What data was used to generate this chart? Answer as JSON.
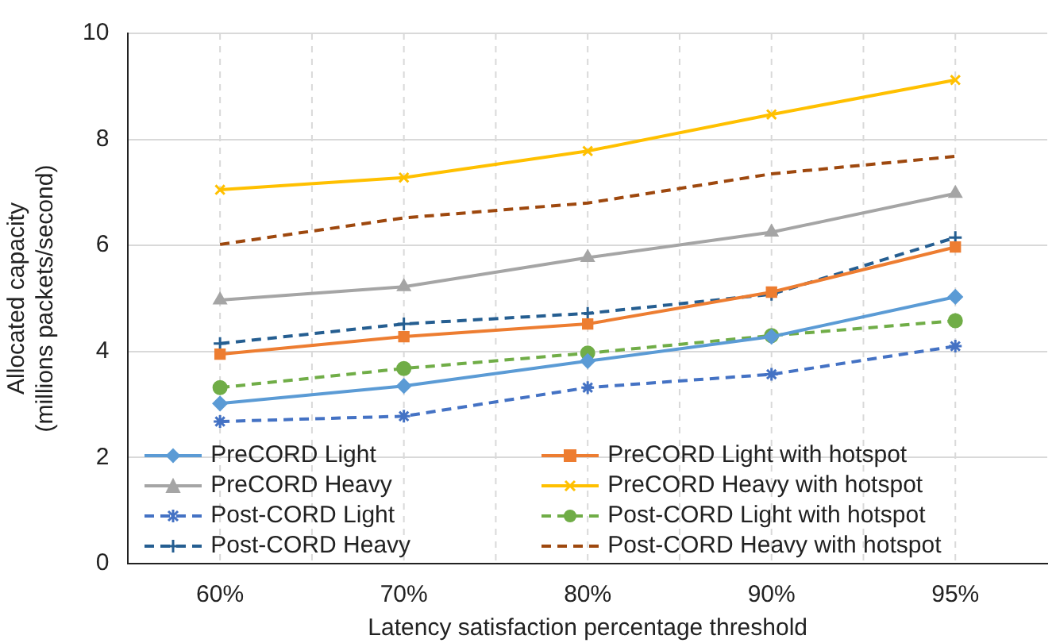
{
  "chart_data": {
    "type": "line",
    "xlabel": "Latency satisfaction percentage threshold",
    "ylabel": "Allocated capacity\n(millions packets/second)",
    "categories": [
      "60%",
      "70%",
      "80%",
      "90%",
      "95%"
    ],
    "ylim": [
      0,
      10
    ],
    "yticks": [
      0,
      2,
      4,
      6,
      8,
      10
    ],
    "grid": true,
    "legend": "bottom",
    "series": [
      {
        "name": "PreCORD Light",
        "color": "#5b9bd5",
        "marker": "diamond",
        "line_style": "solid",
        "values": [
          3.02,
          3.35,
          3.82,
          4.28,
          5.03
        ]
      },
      {
        "name": "PreCORD Light with hotspot",
        "color": "#ed7d31",
        "marker": "square",
        "line_style": "solid",
        "values": [
          3.95,
          4.28,
          4.52,
          5.12,
          5.97
        ]
      },
      {
        "name": "PreCORD Heavy",
        "color": "#a5a5a5",
        "marker": "triangle",
        "line_style": "solid",
        "values": [
          4.97,
          5.22,
          5.77,
          6.25,
          6.98
        ]
      },
      {
        "name": "PreCORD Heavy with hotspot",
        "color": "#ffc000",
        "marker": "x",
        "line_style": "solid",
        "values": [
          7.05,
          7.28,
          7.78,
          8.47,
          9.12
        ]
      },
      {
        "name": "Post-CORD Light",
        "color": "#4472c4",
        "marker": "cross",
        "line_style": "dashed",
        "values": [
          2.68,
          2.78,
          3.32,
          3.57,
          4.1
        ]
      },
      {
        "name": "Post-CORD Light with hotspot",
        "color": "#70ad47",
        "marker": "circle",
        "line_style": "dashed",
        "values": [
          3.32,
          3.68,
          3.97,
          4.3,
          4.58
        ]
      },
      {
        "name": "Post-CORD Heavy",
        "color": "#255e91",
        "marker": "plus",
        "line_style": "dashed",
        "values": [
          4.15,
          4.52,
          4.72,
          5.08,
          6.15
        ]
      },
      {
        "name": "Post-CORD Heavy with hotspot",
        "color": "#9e480e",
        "marker": "none",
        "line_style": "dashed",
        "values": [
          6.02,
          6.52,
          6.8,
          7.35,
          7.68
        ]
      }
    ]
  }
}
